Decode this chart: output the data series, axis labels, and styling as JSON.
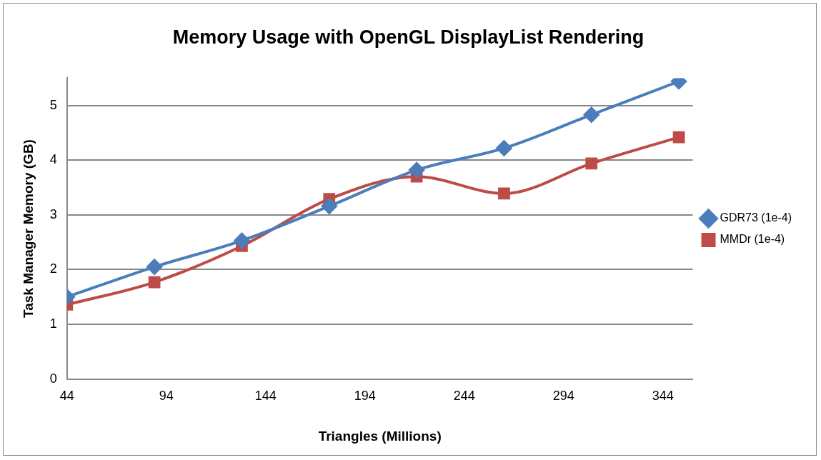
{
  "chart_data": {
    "type": "line",
    "title": "Memory Usage with OpenGL DisplayList Rendering",
    "xlabel": "Triangles (Millions)",
    "ylabel": "Task Manager Memory (GB)",
    "x": [
      44,
      88,
      132,
      176,
      220,
      264,
      308,
      352
    ],
    "series": [
      {
        "name": "GDR73 (1e-4)",
        "color": "#4a7ebb",
        "marker": "diamond",
        "values": [
          1.5,
          2.05,
          2.53,
          3.16,
          3.82,
          4.22,
          4.83,
          5.44
        ]
      },
      {
        "name": "MMDr (1e-4)",
        "color": "#be4b48",
        "marker": "square",
        "values": [
          1.36,
          1.77,
          2.43,
          3.29,
          3.7,
          3.39,
          3.94,
          4.42
        ]
      }
    ],
    "xlim": [
      44,
      359
    ],
    "xticks": [
      44,
      94,
      144,
      194,
      244,
      294,
      344
    ],
    "ylim": [
      0,
      5.5
    ],
    "yticks": [
      0,
      1,
      2,
      3,
      4,
      5
    ],
    "grid": "y",
    "legend": "right",
    "line_style": "solid"
  }
}
